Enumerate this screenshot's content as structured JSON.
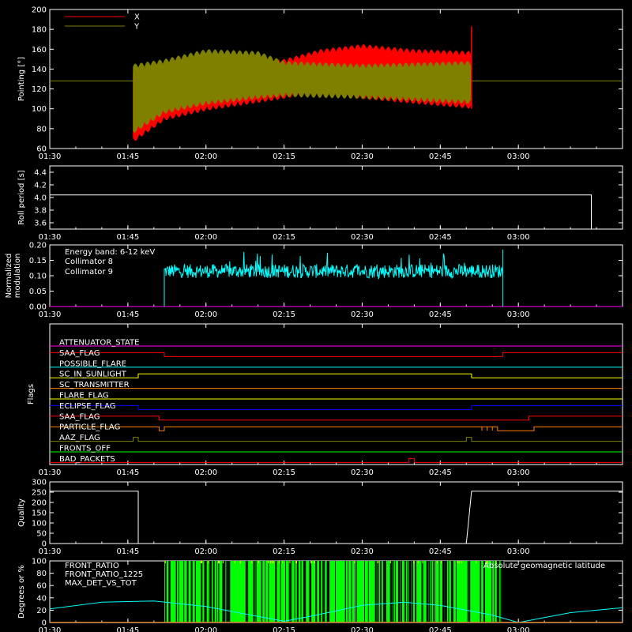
{
  "chart_data": [
    {
      "type": "line",
      "ylabel": "Pointing [°]",
      "ylim": [
        60,
        200
      ],
      "yticks": [
        "60",
        "80",
        "100",
        "120",
        "140",
        "160",
        "180",
        "200"
      ],
      "xticks": [
        "01:30",
        "01:45",
        "02:00",
        "02:15",
        "02:30",
        "02:45",
        "03:00"
      ],
      "series": [
        {
          "name": "X",
          "color": "#ff0000",
          "segments": [
            {
              "x_start": "01:30",
              "x_end": "01:46",
              "value": 128
            },
            {
              "x_start": "01:46",
              "x_end": "02:51",
              "oscillating": true,
              "envelope": [
                {
                  "x": "01:46",
                  "low": 66,
                  "high": 140
                },
                {
                  "x": "01:52",
                  "low": 88,
                  "high": 142
                },
                {
                  "x": "02:00",
                  "low": 98,
                  "high": 150
                },
                {
                  "x": "02:15",
                  "low": 110,
                  "high": 150
                },
                {
                  "x": "02:22",
                  "low": 118,
                  "high": 160
                },
                {
                  "x": "02:30",
                  "low": 110,
                  "high": 165
                },
                {
                  "x": "02:40",
                  "low": 105,
                  "high": 160
                },
                {
                  "x": "02:51",
                  "low": 100,
                  "high": 158
                }
              ]
            },
            {
              "x_start": "02:51",
              "x_end": "03:20",
              "value": 128
            }
          ]
        },
        {
          "name": "Y",
          "color": "#808000",
          "segments": [
            {
              "x_start": "01:30",
              "x_end": "01:46",
              "value": 128
            },
            {
              "x_start": "01:46",
              "x_end": "02:51",
              "oscillating": true,
              "envelope": [
                {
                  "x": "01:46",
                  "low": 75,
                  "high": 145
                },
                {
                  "x": "01:52",
                  "low": 95,
                  "high": 150
                },
                {
                  "x": "02:00",
                  "low": 104,
                  "high": 160
                },
                {
                  "x": "02:10",
                  "low": 110,
                  "high": 158
                },
                {
                  "x": "02:15",
                  "low": 112,
                  "high": 148
                },
                {
                  "x": "02:30",
                  "low": 110,
                  "high": 145
                },
                {
                  "x": "02:51",
                  "low": 105,
                  "high": 148
                }
              ]
            },
            {
              "x_start": "02:51",
              "x_end": "03:20",
              "value": 128
            }
          ]
        }
      ]
    },
    {
      "type": "line",
      "ylabel": "Roll period [s]",
      "ylim": [
        3.5,
        4.5
      ],
      "yticks": [
        "3.6",
        "3.8",
        "4.0",
        "4.2",
        "4.4"
      ],
      "xticks": [
        "01:30",
        "01:45",
        "02:00",
        "02:15",
        "02:30",
        "02:45",
        "03:00"
      ],
      "series": [
        {
          "color": "#ffffff",
          "points": [
            {
              "x": "01:30",
              "y": 4.04
            },
            {
              "x": "03:14",
              "y": 4.04
            },
            {
              "x": "03:14",
              "y": 3.5
            }
          ]
        }
      ]
    },
    {
      "type": "line",
      "ylabel": "Normalized modulation",
      "ylim": [
        0,
        0.2
      ],
      "yticks": [
        "0.00",
        "0.05",
        "0.10",
        "0.15",
        "0.20"
      ],
      "xticks": [
        "01:30",
        "01:45",
        "02:00",
        "02:15",
        "02:30",
        "02:45",
        "03:00"
      ],
      "annotation": "Energy band: 6-12 keV",
      "series": [
        {
          "name": "Collimator 8",
          "color": "#00ffff",
          "x_start": "01:52",
          "x_end": "02:57",
          "mean": 0.115,
          "spread": 0.03
        },
        {
          "name": "Collimator 9",
          "color": "#ff00ff",
          "value": 0
        }
      ]
    },
    {
      "type": "line",
      "ylabel": "Flags",
      "xticks": [
        "01:30",
        "01:45",
        "02:00",
        "02:15",
        "02:30",
        "02:45",
        "03:00"
      ],
      "flags": [
        {
          "name": "ATTENUATOR_STATE",
          "color": "#ff00ff",
          "steps": [
            {
              "x": "01:30",
              "v": 0
            }
          ]
        },
        {
          "name": "SAA_FLAG",
          "color": "#ff0000",
          "steps": [
            {
              "x": "01:30",
              "v": 1
            },
            {
              "x": "01:52",
              "v": 0
            },
            {
              "x": "02:57",
              "v": 1
            }
          ]
        },
        {
          "name": "POSSIBLE_FLARE",
          "color": "#00ffff",
          "steps": [
            {
              "x": "01:30",
              "v": 0
            }
          ]
        },
        {
          "name": "SC_IN_SUNLIGHT",
          "color": "#ffff00",
          "steps": [
            {
              "x": "01:30",
              "v": 0
            },
            {
              "x": "01:47",
              "v": 1
            },
            {
              "x": "02:51",
              "v": 0
            }
          ]
        },
        {
          "name": "SC_TRANSMITTER",
          "color": "#ff8000",
          "steps": [
            {
              "x": "01:30",
              "v": 0
            }
          ]
        },
        {
          "name": "FLARE_FLAG",
          "color": "#ffff00",
          "steps": [
            {
              "x": "01:30",
              "v": 0
            }
          ]
        },
        {
          "name": "ECLIPSE_FLAG",
          "color": "#0000ff",
          "steps": [
            {
              "x": "01:30",
              "v": 1
            },
            {
              "x": "01:47",
              "v": 0
            },
            {
              "x": "02:51",
              "v": 1
            }
          ]
        },
        {
          "name": "SAA_FLAG",
          "color": "#ff0000",
          "steps": [
            {
              "x": "01:30",
              "v": 1
            },
            {
              "x": "01:51",
              "v": 0
            },
            {
              "x": "03:02",
              "v": 1
            }
          ]
        },
        {
          "name": "PARTICLE_FLAG",
          "color": "#ff8000",
          "steps": [
            {
              "x": "01:30",
              "v": 1
            },
            {
              "x": "01:51",
              "v": 0
            },
            {
              "x": "01:52",
              "v": 1
            },
            {
              "x": "02:53",
              "v": 0
            },
            {
              "x": "02:53",
              "v": 1
            },
            {
              "x": "02:54",
              "v": 0
            },
            {
              "x": "02:54",
              "v": 1
            },
            {
              "x": "02:55",
              "v": 0
            },
            {
              "x": "02:55",
              "v": 1
            },
            {
              "x": "02:56",
              "v": 0
            },
            {
              "x": "03:03",
              "v": 1
            }
          ]
        },
        {
          "name": "AAZ_FLAG",
          "color": "#808000",
          "steps": [
            {
              "x": "01:30",
              "v": 0
            },
            {
              "x": "01:46",
              "v": 1
            },
            {
              "x": "01:47",
              "v": 0
            },
            {
              "x": "02:50",
              "v": 1
            },
            {
              "x": "02:51",
              "v": 0
            }
          ]
        },
        {
          "name": "FRONTS_OFF",
          "color": "#00ff00",
          "steps": [
            {
              "x": "01:30",
              "v": 0
            }
          ]
        },
        {
          "name": "BAD_PACKETS",
          "color": "#ff0000",
          "steps": [
            {
              "x": "01:30",
              "v": 0
            },
            {
              "x": "02:39",
              "v": 1
            },
            {
              "x": "02:40",
              "v": 0
            }
          ]
        }
      ]
    },
    {
      "type": "line",
      "ylabel": "Quality",
      "ylim": [
        0,
        300
      ],
      "yticks": [
        "0",
        "50",
        "100",
        "150",
        "200",
        "250",
        "300"
      ],
      "xticks": [
        "01:30",
        "01:45",
        "02:00",
        "02:15",
        "02:30",
        "02:45",
        "03:00"
      ],
      "series": [
        {
          "color": "#ffffff",
          "points": [
            {
              "x": "01:30",
              "y": 255
            },
            {
              "x": "01:47",
              "y": 255
            },
            {
              "x": "01:47",
              "y": 0
            },
            {
              "x": "02:50",
              "y": 0
            },
            {
              "x": "02:51",
              "y": 255
            },
            {
              "x": "03:20",
              "y": 255
            }
          ]
        }
      ]
    },
    {
      "type": "line",
      "ylabel": "Degrees or %",
      "ylim": [
        0,
        100
      ],
      "yticks": [
        "0",
        "20",
        "40",
        "60",
        "80",
        "100"
      ],
      "xticks": [
        "01:30",
        "01:45",
        "02:00",
        "02:15",
        "02:30",
        "02:45",
        "03:00"
      ],
      "series": [
        {
          "name": "FRONT_RATIO",
          "color": "#ffff00"
        },
        {
          "name": "FRONT_RATIO_1225",
          "color": "#00ff00",
          "x_start": "01:52",
          "x_end": "02:57",
          "range": [
            0,
            100
          ]
        },
        {
          "name": "MAX_DET_VS_TOT",
          "color": "#ff8000"
        },
        {
          "name": "Absolute geomagnetic latitude",
          "color": "#00ffff",
          "points": [
            {
              "x": "01:30",
              "y": 22
            },
            {
              "x": "01:40",
              "y": 33
            },
            {
              "x": "01:50",
              "y": 35
            },
            {
              "x": "02:00",
              "y": 26
            },
            {
              "x": "02:10",
              "y": 10
            },
            {
              "x": "02:15",
              "y": 2
            },
            {
              "x": "02:20",
              "y": 10
            },
            {
              "x": "02:30",
              "y": 28
            },
            {
              "x": "02:38",
              "y": 33
            },
            {
              "x": "02:45",
              "y": 28
            },
            {
              "x": "02:55",
              "y": 12
            },
            {
              "x": "03:00",
              "y": 0
            },
            {
              "x": "03:05",
              "y": 8
            },
            {
              "x": "03:10",
              "y": 16
            },
            {
              "x": "03:20",
              "y": 24
            }
          ]
        }
      ]
    }
  ]
}
